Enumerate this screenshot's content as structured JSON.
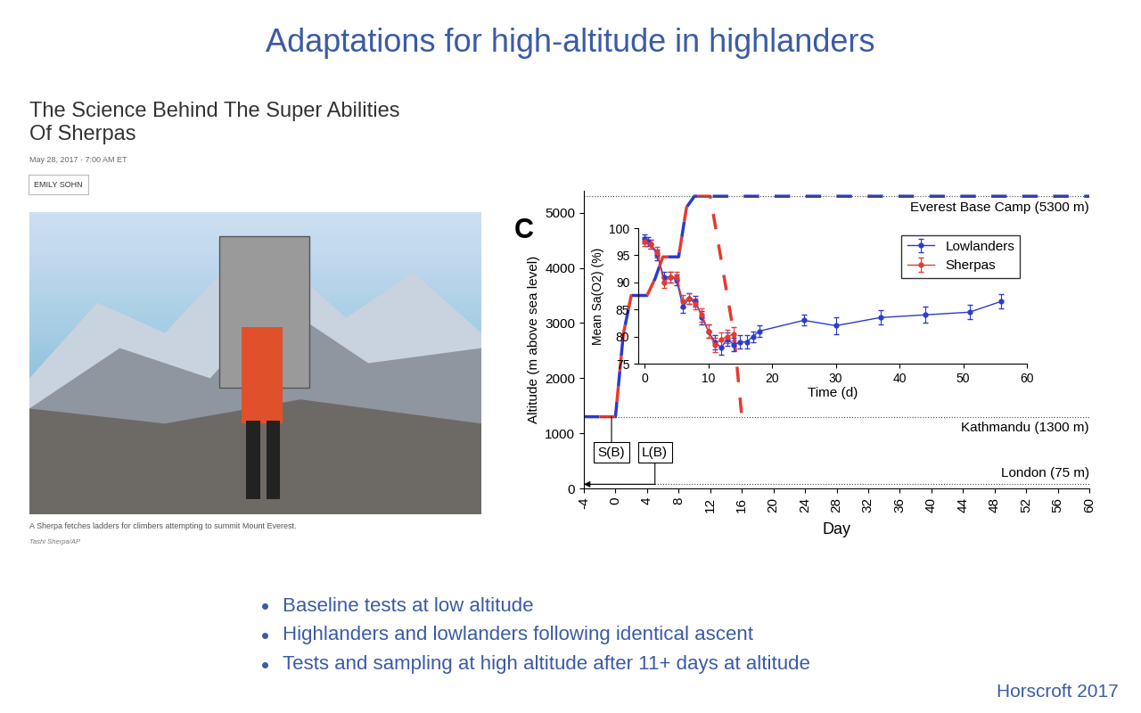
{
  "slide": {
    "title": "Adaptations for high-altitude in highlanders",
    "article": {
      "headline": "The Science Behind The Super Abilities\nOf Sherpas",
      "date": "May 28, 2017 · 7:00 AM ET",
      "author": "EMILY SOHN",
      "caption": "A Sherpa fetches ladders for climbers attempting to summit Mount Everest.",
      "credit": "Tashi Sherpa/AP"
    },
    "bullets": [
      "Baseline tests at low altitude",
      "Highlanders and lowlanders following identical ascent",
      "Tests and sampling at high altitude after 11+ days at altitude"
    ],
    "source": "Horscroft 2017"
  },
  "chart_data": [
    {
      "type": "line",
      "x_label": "Day",
      "y_label": "Altitude (m above sea level)",
      "xlim": [
        -4,
        60
      ],
      "xticks": [
        -4,
        0,
        4,
        8,
        12,
        16,
        20,
        24,
        28,
        32,
        36,
        40,
        44,
        48,
        52,
        56,
        60
      ],
      "ylim": [
        0,
        5400
      ],
      "yticks": [
        0,
        1000,
        2000,
        3000,
        4000,
        5000
      ],
      "series": [
        {
          "name": "Lowlanders",
          "color": "#2a3bd0",
          "line_style": "dashed",
          "x": [
            -4,
            0,
            1,
            2,
            4,
            5,
            6,
            8,
            9,
            10,
            60
          ],
          "values": [
            1300,
            1300,
            2800,
            3500,
            3500,
            3800,
            4200,
            4200,
            5100,
            5300,
            5300
          ]
        },
        {
          "name": "Sherpas",
          "color": "#e8392f",
          "line_style": "dashed",
          "x": [
            -4,
            0,
            1,
            2,
            4,
            5,
            6,
            8,
            9,
            10,
            12,
            15,
            16
          ],
          "values": [
            1300,
            1300,
            2800,
            3500,
            3500,
            3800,
            4200,
            4200,
            5100,
            5300,
            5300,
            2800,
            1300
          ]
        }
      ],
      "reference_lines": [
        {
          "y": 5300,
          "label": "Everest Base Camp (5300 m)"
        },
        {
          "y": 1300,
          "label": "Kathmandu (1300 m)"
        },
        {
          "y": 75,
          "label": "London (75 m)"
        }
      ],
      "annotations": [
        {
          "text": "S(B)",
          "x": -0.5,
          "y": 650,
          "to_y": 1300
        },
        {
          "text": "L(B)",
          "x": 5,
          "y": 650,
          "to_y": 75,
          "arrow_to_x": -4
        }
      ]
    },
    {
      "type": "line",
      "panel_label": "C",
      "x_label": "Time (d)",
      "y_label": "Mean Sa(O2) (%)",
      "xlim": [
        -1,
        60
      ],
      "xticks": [
        0,
        10,
        20,
        30,
        40,
        50,
        60
      ],
      "ylim": [
        75,
        100
      ],
      "yticks": [
        75,
        80,
        85,
        90,
        95,
        100
      ],
      "legend": "upper right",
      "series": [
        {
          "name": "Lowlanders",
          "color": "#2a3bd0",
          "marker": "circle",
          "line_style": "solid",
          "x": [
            0,
            0.5,
            1,
            2,
            3,
            4,
            5,
            6,
            7,
            8,
            9,
            10,
            11,
            12,
            13,
            14,
            15,
            16,
            17,
            18,
            25,
            30,
            37,
            44,
            51,
            56
          ],
          "values": [
            98,
            97.5,
            97,
            95,
            91,
            91,
            90.5,
            85.5,
            87,
            86.5,
            83.5,
            81,
            79,
            78,
            79.5,
            78.5,
            79,
            79,
            80,
            81,
            83,
            82,
            83.5,
            84,
            84.5,
            86.5
          ],
          "errors": [
            0.8,
            0.8,
            0.8,
            1,
            1,
            1,
            1,
            1.2,
            1,
            1,
            1.2,
            1.2,
            1.3,
            1.3,
            1.2,
            1.2,
            1.2,
            1.2,
            1,
            1,
            1,
            1.5,
            1.3,
            1.5,
            1.3,
            1.3
          ]
        },
        {
          "name": "Sherpas",
          "color": "#e8392f",
          "marker": "circle",
          "line_style": "solid",
          "x": [
            0,
            1,
            2,
            3,
            4,
            5,
            6,
            7,
            8,
            9,
            10,
            11,
            12,
            13,
            14
          ],
          "values": [
            97.5,
            97,
            95.5,
            90,
            91,
            91,
            86.5,
            87,
            86,
            84,
            81,
            78.5,
            79.5,
            80,
            80.5
          ],
          "errors": [
            0.8,
            0.8,
            1,
            1,
            1,
            1,
            1.2,
            1,
            1,
            1.2,
            1.2,
            1.3,
            1.3,
            1.2,
            1.2
          ]
        }
      ]
    }
  ]
}
